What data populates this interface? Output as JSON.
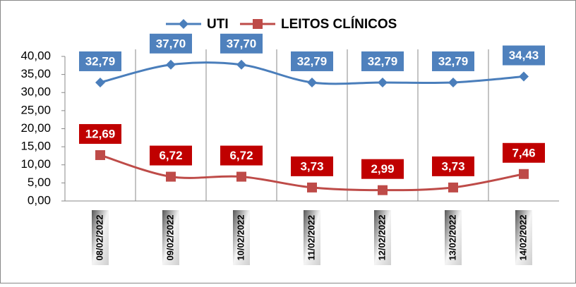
{
  "chart_data": {
    "type": "line",
    "categories": [
      "08/02/2022",
      "09/02/2022",
      "10/02/2022",
      "11/02/2022",
      "12/02/2022",
      "13/02/2022",
      "14/02/2022"
    ],
    "series": [
      {
        "name": "UTI",
        "color": "#4a7ebb",
        "label_color": "#4f81bd",
        "marker": "diamond",
        "values": [
          32.79,
          37.7,
          37.7,
          32.79,
          32.79,
          32.79,
          34.43
        ],
        "value_labels": [
          "32,79",
          "37,70",
          "37,70",
          "32,79",
          "32,79",
          "32,79",
          "34,43"
        ]
      },
      {
        "name": "LEITOS CLÍNICOS",
        "color": "#be4b48",
        "label_color": "#c00000",
        "marker": "square",
        "values": [
          12.69,
          6.72,
          6.72,
          3.73,
          2.99,
          3.73,
          7.46
        ],
        "value_labels": [
          "12,69",
          "6,72",
          "6,72",
          "3,73",
          "2,99",
          "3,73",
          "7,46"
        ]
      }
    ],
    "ylim": [
      0,
      40
    ],
    "yticks": [
      {
        "value": 0,
        "label": "0,00"
      },
      {
        "value": 5,
        "label": "5,00"
      },
      {
        "value": 10,
        "label": "10,00"
      },
      {
        "value": 15,
        "label": "15,00"
      },
      {
        "value": 20,
        "label": "20,00"
      },
      {
        "value": 25,
        "label": "25,00"
      },
      {
        "value": 30,
        "label": "30,00"
      },
      {
        "value": 35,
        "label": "35,00"
      },
      {
        "value": 40,
        "label": "40,00"
      }
    ],
    "grid": "vertical",
    "legend": "top"
  }
}
